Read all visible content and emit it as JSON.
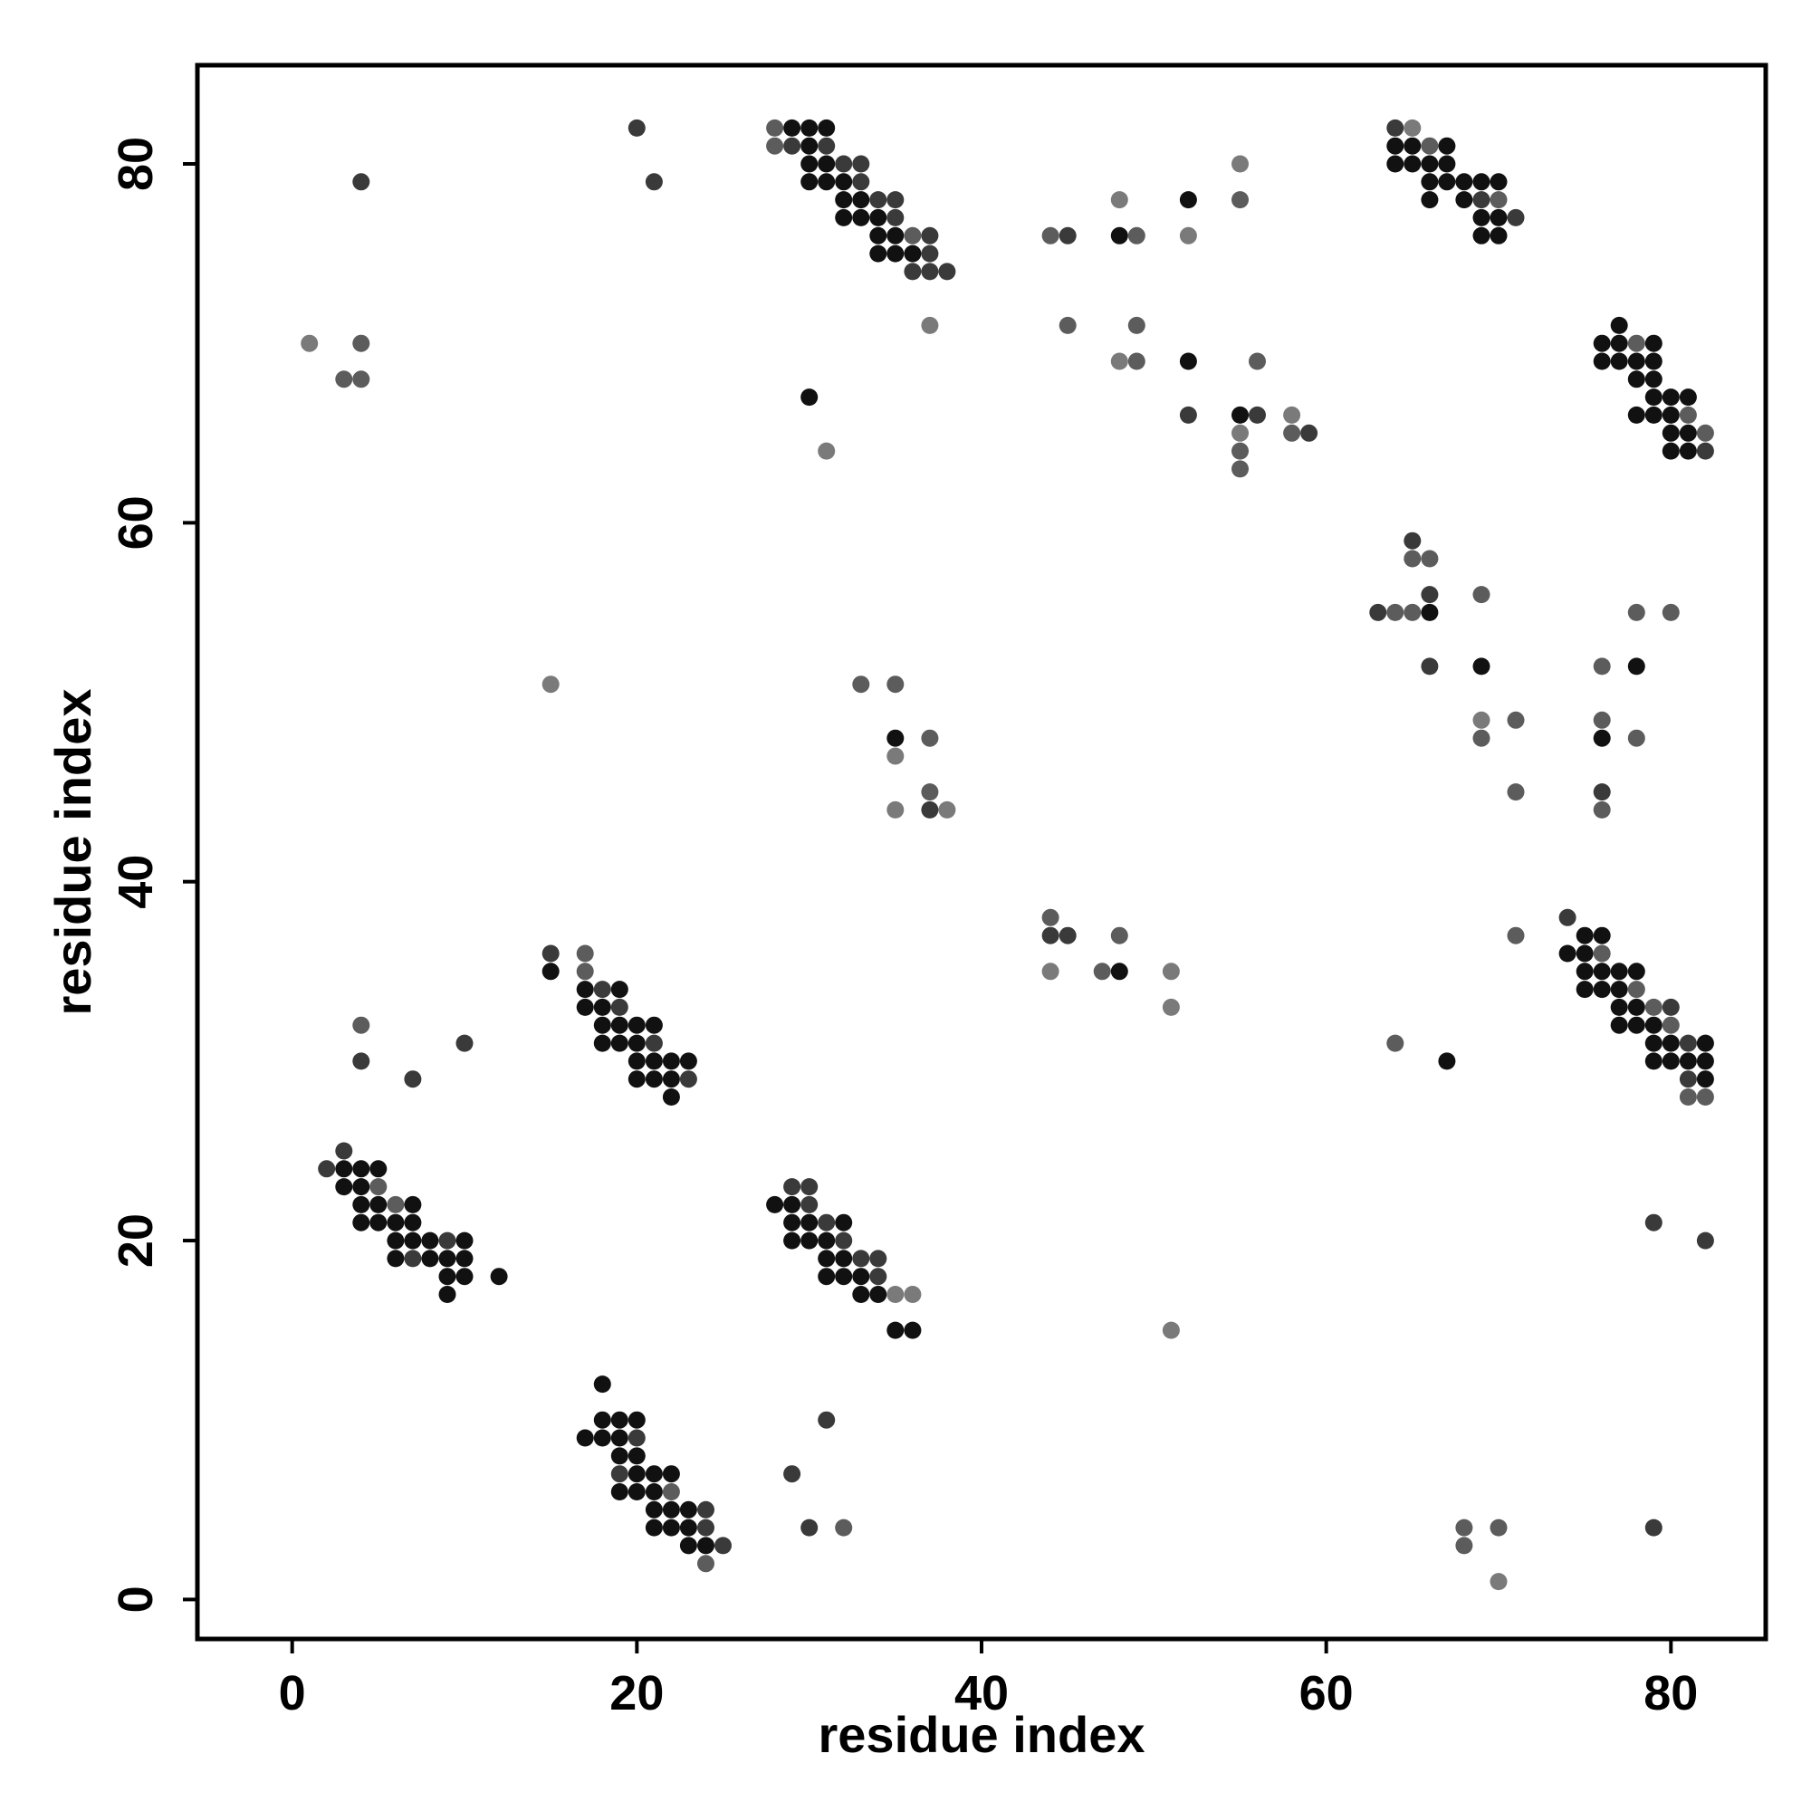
{
  "chart_data": {
    "type": "scatter",
    "title": "",
    "xlabel": "residue index",
    "ylabel": "residue index",
    "xlim": [
      -5.5,
      85.5
    ],
    "ylim": [
      -2.2,
      85.5
    ],
    "xticks": [
      0,
      20,
      40,
      60,
      80
    ],
    "yticks": [
      0,
      20,
      40,
      60,
      80
    ],
    "xtick_labels": [
      "0",
      "20",
      "40",
      "60",
      "80"
    ],
    "ytick_labels": [
      "0",
      "20",
      "40",
      "60",
      "80"
    ],
    "grid": false,
    "legend": "none",
    "point_shades": {
      "1": "#111111",
      "2": "#3a3a3a",
      "3": "#5c5c5c",
      "4": "#7a7a7a"
    },
    "points": [
      [
        1,
        70,
        4
      ],
      [
        3,
        68,
        3
      ],
      [
        4,
        68,
        3
      ],
      [
        4,
        70,
        3
      ],
      [
        4,
        79,
        2
      ],
      [
        20,
        82,
        2
      ],
      [
        21,
        79,
        2
      ],
      [
        2,
        24,
        2
      ],
      [
        3,
        25,
        2
      ],
      [
        3,
        24,
        1
      ],
      [
        4,
        24,
        1
      ],
      [
        5,
        24,
        1
      ],
      [
        3,
        23,
        1
      ],
      [
        4,
        23,
        1
      ],
      [
        5,
        23,
        3
      ],
      [
        4,
        22,
        1
      ],
      [
        5,
        22,
        1
      ],
      [
        6,
        22,
        3
      ],
      [
        7,
        22,
        1
      ],
      [
        4,
        21,
        1
      ],
      [
        5,
        21,
        1
      ],
      [
        6,
        21,
        1
      ],
      [
        7,
        21,
        1
      ],
      [
        6,
        20,
        1
      ],
      [
        7,
        20,
        1
      ],
      [
        8,
        20,
        1
      ],
      [
        9,
        20,
        2
      ],
      [
        10,
        20,
        1
      ],
      [
        6,
        19,
        1
      ],
      [
        7,
        19,
        2
      ],
      [
        8,
        19,
        1
      ],
      [
        9,
        19,
        1
      ],
      [
        10,
        19,
        1
      ],
      [
        9,
        18,
        1
      ],
      [
        10,
        18,
        1
      ],
      [
        12,
        18,
        1
      ],
      [
        9,
        17,
        1
      ],
      [
        4,
        32,
        3
      ],
      [
        4,
        30,
        2
      ],
      [
        7,
        29,
        2
      ],
      [
        10,
        31,
        2
      ],
      [
        15,
        51,
        4
      ],
      [
        15,
        36,
        2
      ],
      [
        15,
        35,
        1
      ],
      [
        17,
        36,
        3
      ],
      [
        17,
        35,
        3
      ],
      [
        17,
        34,
        1
      ],
      [
        18,
        34,
        2
      ],
      [
        19,
        34,
        1
      ],
      [
        17,
        33,
        1
      ],
      [
        18,
        33,
        1
      ],
      [
        19,
        33,
        2
      ],
      [
        18,
        32,
        1
      ],
      [
        19,
        32,
        1
      ],
      [
        20,
        32,
        1
      ],
      [
        21,
        32,
        1
      ],
      [
        18,
        31,
        1
      ],
      [
        19,
        31,
        1
      ],
      [
        20,
        31,
        1
      ],
      [
        21,
        31,
        2
      ],
      [
        20,
        30,
        1
      ],
      [
        21,
        30,
        1
      ],
      [
        22,
        30,
        1
      ],
      [
        23,
        30,
        1
      ],
      [
        20,
        29,
        1
      ],
      [
        21,
        29,
        1
      ],
      [
        22,
        29,
        1
      ],
      [
        23,
        29,
        2
      ],
      [
        22,
        28,
        1
      ],
      [
        18,
        12,
        1
      ],
      [
        17,
        9,
        1
      ],
      [
        18,
        9,
        1
      ],
      [
        19,
        9,
        1
      ],
      [
        20,
        9,
        2
      ],
      [
        18,
        10,
        1
      ],
      [
        19,
        10,
        1
      ],
      [
        20,
        10,
        1
      ],
      [
        19,
        8,
        1
      ],
      [
        20,
        8,
        1
      ],
      [
        19,
        7,
        2
      ],
      [
        20,
        7,
        1
      ],
      [
        21,
        7,
        1
      ],
      [
        22,
        7,
        1
      ],
      [
        19,
        6,
        1
      ],
      [
        20,
        6,
        1
      ],
      [
        21,
        6,
        1
      ],
      [
        22,
        6,
        3
      ],
      [
        21,
        5,
        1
      ],
      [
        22,
        5,
        1
      ],
      [
        23,
        5,
        1
      ],
      [
        24,
        5,
        2
      ],
      [
        21,
        4,
        1
      ],
      [
        22,
        4,
        1
      ],
      [
        23,
        4,
        1
      ],
      [
        24,
        4,
        2
      ],
      [
        23,
        3,
        1
      ],
      [
        24,
        3,
        1
      ],
      [
        25,
        3,
        2
      ],
      [
        24,
        2,
        3
      ],
      [
        28,
        82,
        3
      ],
      [
        29,
        82,
        1
      ],
      [
        30,
        82,
        1
      ],
      [
        31,
        82,
        1
      ],
      [
        28,
        81,
        3
      ],
      [
        29,
        81,
        2
      ],
      [
        30,
        81,
        1
      ],
      [
        31,
        81,
        2
      ],
      [
        30,
        80,
        1
      ],
      [
        31,
        80,
        1
      ],
      [
        32,
        80,
        2
      ],
      [
        33,
        80,
        2
      ],
      [
        30,
        79,
        1
      ],
      [
        31,
        79,
        1
      ],
      [
        32,
        79,
        1
      ],
      [
        33,
        79,
        2
      ],
      [
        32,
        78,
        1
      ],
      [
        33,
        78,
        1
      ],
      [
        34,
        78,
        2
      ],
      [
        35,
        78,
        2
      ],
      [
        32,
        77,
        1
      ],
      [
        33,
        77,
        1
      ],
      [
        34,
        77,
        1
      ],
      [
        35,
        77,
        2
      ],
      [
        34,
        76,
        1
      ],
      [
        35,
        76,
        1
      ],
      [
        36,
        76,
        3
      ],
      [
        37,
        76,
        2
      ],
      [
        34,
        75,
        1
      ],
      [
        35,
        75,
        1
      ],
      [
        36,
        75,
        1
      ],
      [
        37,
        75,
        2
      ],
      [
        36,
        74,
        2
      ],
      [
        37,
        74,
        2
      ],
      [
        38,
        74,
        2
      ],
      [
        37,
        71,
        4
      ],
      [
        30,
        67,
        1
      ],
      [
        31,
        64,
        4
      ],
      [
        28,
        22,
        1
      ],
      [
        29,
        23,
        2
      ],
      [
        30,
        23,
        2
      ],
      [
        29,
        22,
        1
      ],
      [
        30,
        22,
        2
      ],
      [
        29,
        21,
        1
      ],
      [
        30,
        21,
        1
      ],
      [
        31,
        21,
        2
      ],
      [
        32,
        21,
        1
      ],
      [
        29,
        20,
        1
      ],
      [
        30,
        20,
        1
      ],
      [
        31,
        20,
        1
      ],
      [
        32,
        20,
        2
      ],
      [
        31,
        19,
        1
      ],
      [
        32,
        19,
        1
      ],
      [
        33,
        19,
        2
      ],
      [
        34,
        19,
        2
      ],
      [
        31,
        18,
        1
      ],
      [
        32,
        18,
        1
      ],
      [
        33,
        18,
        1
      ],
      [
        34,
        18,
        2
      ],
      [
        33,
        17,
        1
      ],
      [
        34,
        17,
        1
      ],
      [
        35,
        17,
        4
      ],
      [
        36,
        17,
        4
      ],
      [
        35,
        15,
        1
      ],
      [
        36,
        15,
        1
      ],
      [
        29,
        7,
        2
      ],
      [
        31,
        10,
        2
      ],
      [
        30,
        4,
        2
      ],
      [
        32,
        4,
        3
      ],
      [
        33,
        51,
        3
      ],
      [
        35,
        51,
        3
      ],
      [
        35,
        48,
        1
      ],
      [
        35,
        47,
        4
      ],
      [
        37,
        48,
        3
      ],
      [
        37,
        45,
        3
      ],
      [
        37,
        44,
        2
      ],
      [
        35,
        44,
        4
      ],
      [
        38,
        44,
        4
      ],
      [
        44,
        76,
        3
      ],
      [
        45,
        76,
        2
      ],
      [
        45,
        71,
        3
      ],
      [
        48,
        78,
        4
      ],
      [
        48,
        76,
        1
      ],
      [
        49,
        76,
        3
      ],
      [
        49,
        71,
        3
      ],
      [
        48,
        69,
        4
      ],
      [
        49,
        69,
        3
      ],
      [
        52,
        78,
        1
      ],
      [
        52,
        76,
        4
      ],
      [
        52,
        69,
        1
      ],
      [
        52,
        66,
        2
      ],
      [
        55,
        80,
        4
      ],
      [
        55,
        78,
        3
      ],
      [
        55,
        66,
        1
      ],
      [
        56,
        66,
        2
      ],
      [
        55,
        65,
        4
      ],
      [
        55,
        64,
        3
      ],
      [
        55,
        63,
        3
      ],
      [
        56,
        69,
        3
      ],
      [
        58,
        66,
        4
      ],
      [
        58,
        65,
        3
      ],
      [
        59,
        65,
        2
      ],
      [
        44,
        38,
        3
      ],
      [
        44,
        37,
        2
      ],
      [
        45,
        37,
        2
      ],
      [
        44,
        35,
        4
      ],
      [
        47,
        35,
        3
      ],
      [
        48,
        35,
        1
      ],
      [
        48,
        37,
        3
      ],
      [
        51,
        35,
        4
      ],
      [
        51,
        33,
        4
      ],
      [
        51,
        15,
        4
      ],
      [
        64,
        82,
        2
      ],
      [
        65,
        82,
        4
      ],
      [
        64,
        81,
        1
      ],
      [
        65,
        81,
        1
      ],
      [
        66,
        81,
        3
      ],
      [
        67,
        81,
        1
      ],
      [
        64,
        80,
        1
      ],
      [
        65,
        80,
        1
      ],
      [
        66,
        80,
        1
      ],
      [
        67,
        80,
        1
      ],
      [
        66,
        79,
        1
      ],
      [
        67,
        79,
        1
      ],
      [
        68,
        79,
        1
      ],
      [
        69,
        79,
        1
      ],
      [
        70,
        79,
        1
      ],
      [
        66,
        78,
        1
      ],
      [
        68,
        78,
        1
      ],
      [
        69,
        78,
        2
      ],
      [
        70,
        78,
        3
      ],
      [
        69,
        77,
        1
      ],
      [
        70,
        77,
        1
      ],
      [
        71,
        77,
        2
      ],
      [
        69,
        76,
        1
      ],
      [
        70,
        76,
        1
      ],
      [
        77,
        71,
        1
      ],
      [
        76,
        70,
        1
      ],
      [
        77,
        70,
        1
      ],
      [
        78,
        70,
        3
      ],
      [
        79,
        70,
        1
      ],
      [
        76,
        69,
        1
      ],
      [
        77,
        69,
        1
      ],
      [
        78,
        69,
        1
      ],
      [
        79,
        69,
        1
      ],
      [
        78,
        68,
        1
      ],
      [
        79,
        68,
        1
      ],
      [
        79,
        67,
        1
      ],
      [
        80,
        67,
        1
      ],
      [
        81,
        67,
        1
      ],
      [
        78,
        66,
        1
      ],
      [
        79,
        66,
        1
      ],
      [
        80,
        66,
        1
      ],
      [
        81,
        66,
        3
      ],
      [
        80,
        65,
        1
      ],
      [
        81,
        65,
        1
      ],
      [
        82,
        65,
        3
      ],
      [
        80,
        64,
        1
      ],
      [
        81,
        64,
        1
      ],
      [
        82,
        64,
        2
      ],
      [
        65,
        59,
        2
      ],
      [
        65,
        58,
        3
      ],
      [
        66,
        58,
        3
      ],
      [
        63,
        55,
        2
      ],
      [
        64,
        55,
        3
      ],
      [
        65,
        55,
        3
      ],
      [
        66,
        55,
        1
      ],
      [
        66,
        56,
        2
      ],
      [
        66,
        52,
        2
      ],
      [
        69,
        56,
        3
      ],
      [
        69,
        52,
        1
      ],
      [
        69,
        49,
        4
      ],
      [
        69,
        48,
        3
      ],
      [
        71,
        49,
        3
      ],
      [
        71,
        45,
        3
      ],
      [
        71,
        37,
        3
      ],
      [
        76,
        52,
        3
      ],
      [
        76,
        49,
        3
      ],
      [
        76,
        48,
        1
      ],
      [
        76,
        45,
        2
      ],
      [
        76,
        44,
        3
      ],
      [
        78,
        55,
        3
      ],
      [
        78,
        52,
        1
      ],
      [
        78,
        48,
        3
      ],
      [
        80,
        55,
        3
      ],
      [
        74,
        38,
        2
      ],
      [
        75,
        37,
        1
      ],
      [
        76,
        37,
        1
      ],
      [
        74,
        36,
        1
      ],
      [
        75,
        36,
        1
      ],
      [
        76,
        36,
        3
      ],
      [
        75,
        35,
        1
      ],
      [
        76,
        35,
        1
      ],
      [
        77,
        35,
        1
      ],
      [
        78,
        35,
        1
      ],
      [
        75,
        34,
        1
      ],
      [
        76,
        34,
        1
      ],
      [
        77,
        34,
        1
      ],
      [
        78,
        34,
        3
      ],
      [
        77,
        33,
        1
      ],
      [
        78,
        33,
        1
      ],
      [
        79,
        33,
        3
      ],
      [
        80,
        33,
        2
      ],
      [
        77,
        32,
        1
      ],
      [
        78,
        32,
        1
      ],
      [
        79,
        32,
        1
      ],
      [
        80,
        32,
        3
      ],
      [
        79,
        31,
        1
      ],
      [
        80,
        31,
        1
      ],
      [
        81,
        31,
        2
      ],
      [
        82,
        31,
        1
      ],
      [
        79,
        30,
        1
      ],
      [
        80,
        30,
        1
      ],
      [
        81,
        30,
        1
      ],
      [
        82,
        30,
        1
      ],
      [
        81,
        29,
        2
      ],
      [
        82,
        29,
        1
      ],
      [
        81,
        28,
        3
      ],
      [
        82,
        28,
        3
      ],
      [
        64,
        31,
        3
      ],
      [
        67,
        30,
        1
      ],
      [
        79,
        21,
        2
      ],
      [
        82,
        20,
        2
      ],
      [
        68,
        4,
        3
      ],
      [
        68,
        3,
        3
      ],
      [
        70,
        4,
        3
      ],
      [
        70,
        1,
        4
      ],
      [
        79,
        4,
        2
      ]
    ]
  }
}
